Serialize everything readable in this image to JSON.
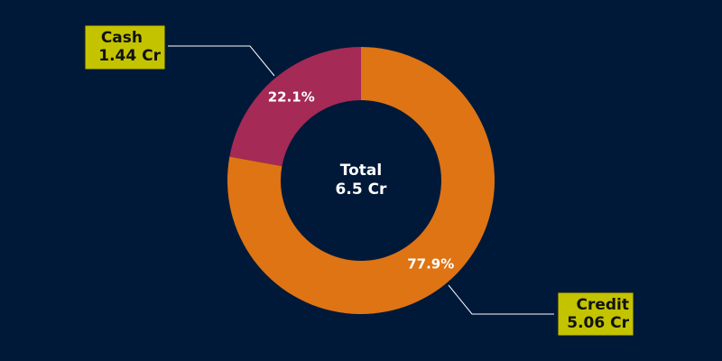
{
  "chart_data": {
    "type": "pie",
    "subtype": "donut",
    "center": {
      "line1": "Total",
      "line2": "6.5 Cr"
    },
    "slices": [
      {
        "name": "Cash",
        "value": 1.44,
        "value_label": "1.44 Cr",
        "percent": 22.1,
        "percent_label": "22.1%",
        "color": "#a52a55"
      },
      {
        "name": "Credit",
        "value": 5.06,
        "value_label": "5.06 Cr",
        "percent": 77.9,
        "percent_label": "77.9%",
        "color": "#de7414"
      }
    ],
    "colors": {
      "background": "#011939",
      "callout_box": "#c3c300",
      "leader_line": "#ffffff"
    }
  }
}
